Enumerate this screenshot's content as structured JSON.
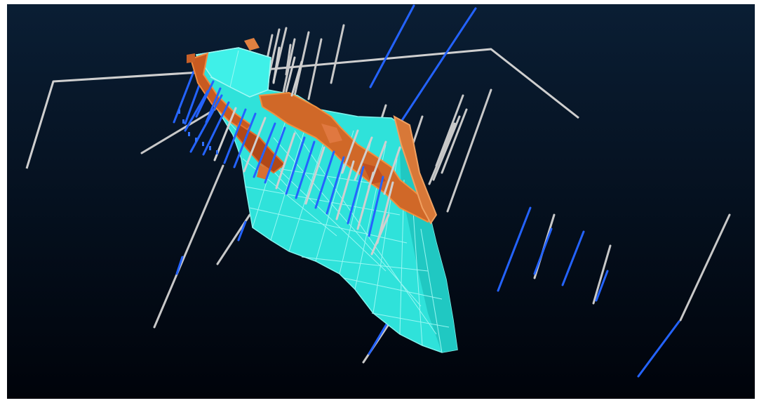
{
  "scene": {
    "background_top": "#0a1e34",
    "background_bottom": "#00030a",
    "orebody_fill": "#2fe0d8",
    "orebody_edges": "#8ff5f0",
    "mineralization_color": "#e07030",
    "drillhole_white": "#d0d0d0",
    "drillhole_blue": "#2060ff"
  }
}
